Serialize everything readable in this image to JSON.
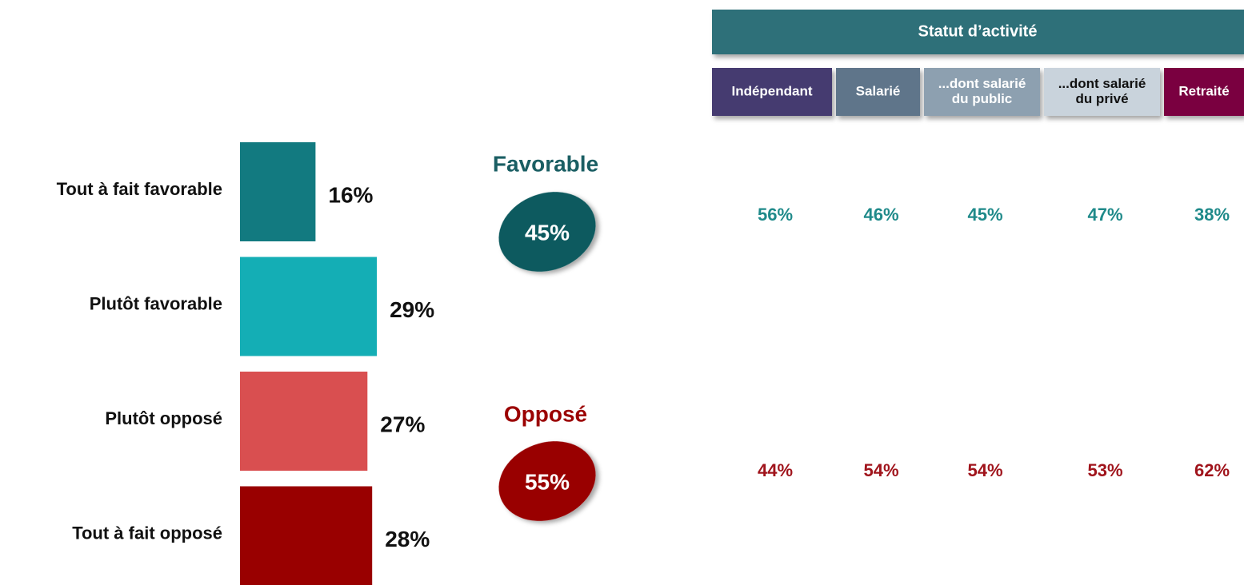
{
  "chart_data": {
    "type": "bar",
    "categories": [
      "Tout à fait favorable",
      "Plutôt favorable",
      "Plutôt opposé",
      "Tout à fait opposé"
    ],
    "values": [
      16,
      29,
      27,
      28
    ],
    "value_labels": [
      "16%",
      "29%",
      "27%",
      "28%"
    ],
    "colors": [
      "#127a80",
      "#14aeb5",
      "#d94f50",
      "#990000"
    ]
  },
  "summary": [
    {
      "title": "Favorable",
      "value": "45%",
      "color": "#0f5a5e",
      "title_color": "#1a5e63"
    },
    {
      "title": "Opposé",
      "value": "55%",
      "color": "#990000",
      "title_color": "#9b0000"
    }
  ],
  "table": {
    "title": "Statut d’activité",
    "columns": [
      {
        "label": [
          "Indépendant"
        ],
        "color": "#453b70",
        "text_color": "#ffffff"
      },
      {
        "label": [
          "Salarié"
        ],
        "color": "#5e758a",
        "text_color": "#ffffff"
      },
      {
        "label": [
          "...dont salarié",
          "du public"
        ],
        "color": "#8da0b0",
        "text_color": "#ffffff"
      },
      {
        "label": [
          "...dont salarié",
          "du privé"
        ],
        "color": "#c9d3dc",
        "text_color": "#111111"
      },
      {
        "label": [
          "Retraité"
        ],
        "color": "#7a0040",
        "text_color": "#ffffff"
      }
    ],
    "rows": [
      {
        "color": "#1f8a8a",
        "values": [
          "56%",
          "46%",
          "45%",
          "47%",
          "38%"
        ]
      },
      {
        "color": "#a0141c",
        "values": [
          "44%",
          "54%",
          "54%",
          "53%",
          "62%"
        ]
      }
    ]
  }
}
